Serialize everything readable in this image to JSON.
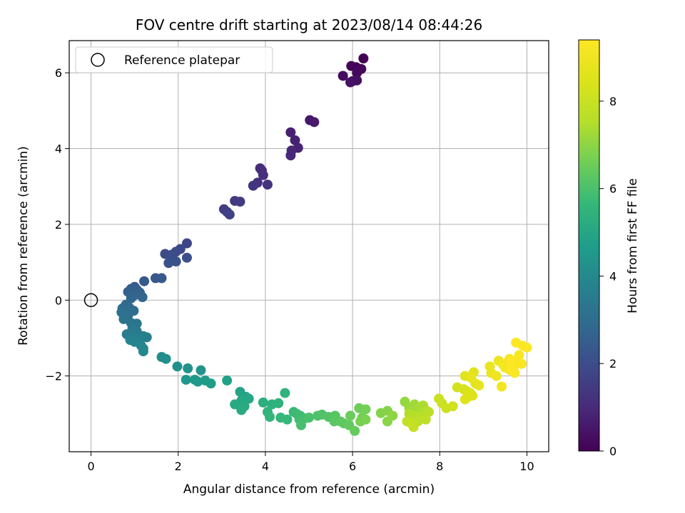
{
  "chart_data": {
    "type": "scatter",
    "title": "FOV centre drift starting at 2023/08/14 08:44:26",
    "xlabel": "Angular distance from reference (arcmin)",
    "ylabel": "Rotation from reference (arcmin)",
    "xlim": [
      -0.5,
      10.5
    ],
    "ylim": [
      -4.0,
      6.85
    ],
    "xticks": [
      0,
      2,
      4,
      6,
      8,
      10
    ],
    "yticks": [
      -2,
      0,
      2,
      4,
      6
    ],
    "grid": true,
    "legend": {
      "position": "top-left",
      "entries": [
        "Reference platepar"
      ]
    },
    "reference_point": {
      "x": 0,
      "y": 0
    },
    "colorbar": {
      "label": "Hours from first FF file",
      "colormap": "viridis",
      "range": [
        0,
        9.4
      ],
      "ticks": [
        0,
        2,
        4,
        6,
        8
      ]
    },
    "points": [
      [
        6.25,
        6.38,
        0.0
      ],
      [
        5.97,
        6.18,
        0.05
      ],
      [
        6.08,
        6.15,
        0.1
      ],
      [
        6.2,
        6.1,
        0.15
      ],
      [
        6.1,
        6.0,
        0.2
      ],
      [
        5.78,
        5.92,
        0.25
      ],
      [
        6.0,
        5.78,
        0.3
      ],
      [
        6.1,
        5.8,
        0.35
      ],
      [
        5.95,
        5.75,
        0.4
      ],
      [
        5.02,
        4.75,
        0.55
      ],
      [
        5.12,
        4.7,
        0.6
      ],
      [
        4.58,
        4.43,
        0.75
      ],
      [
        4.68,
        4.22,
        0.8
      ],
      [
        4.75,
        4.02,
        0.85
      ],
      [
        4.6,
        3.95,
        0.9
      ],
      [
        4.58,
        3.82,
        0.95
      ],
      [
        3.88,
        3.48,
        1.05
      ],
      [
        3.92,
        3.42,
        1.1
      ],
      [
        3.95,
        3.3,
        1.15
      ],
      [
        3.82,
        3.1,
        1.2
      ],
      [
        4.05,
        3.05,
        1.25
      ],
      [
        3.72,
        3.02,
        1.3
      ],
      [
        3.3,
        2.62,
        1.45
      ],
      [
        3.42,
        2.6,
        1.5
      ],
      [
        3.05,
        2.4,
        1.55
      ],
      [
        3.12,
        2.33,
        1.6
      ],
      [
        3.18,
        2.26,
        1.65
      ],
      [
        2.2,
        1.5,
        1.8
      ],
      [
        2.05,
        1.35,
        1.85
      ],
      [
        1.95,
        1.28,
        1.9
      ],
      [
        1.7,
        1.22,
        1.95
      ],
      [
        1.85,
        1.2,
        2.0
      ],
      [
        2.2,
        1.12,
        2.05
      ],
      [
        1.95,
        1.02,
        2.1
      ],
      [
        1.78,
        0.98,
        2.15
      ],
      [
        1.48,
        0.58,
        2.3
      ],
      [
        1.62,
        0.58,
        2.35
      ],
      [
        1.22,
        0.5,
        2.4
      ],
      [
        1.0,
        0.35,
        2.45
      ],
      [
        0.92,
        0.3,
        2.5
      ],
      [
        1.05,
        0.28,
        2.55
      ],
      [
        0.85,
        0.22,
        2.6
      ],
      [
        1.12,
        0.2,
        2.65
      ],
      [
        0.98,
        0.12,
        2.7
      ],
      [
        1.18,
        0.08,
        2.75
      ],
      [
        0.92,
        0.05,
        2.8
      ],
      [
        0.8,
        -0.12,
        2.9
      ],
      [
        0.88,
        -0.2,
        2.95
      ],
      [
        0.72,
        -0.22,
        3.0
      ],
      [
        0.98,
        -0.28,
        3.05
      ],
      [
        0.7,
        -0.32,
        3.1
      ],
      [
        0.85,
        -0.4,
        3.15
      ],
      [
        0.75,
        -0.5,
        3.2
      ],
      [
        0.92,
        -0.6,
        3.25
      ],
      [
        1.05,
        -0.62,
        3.3
      ],
      [
        0.95,
        -0.75,
        3.4
      ],
      [
        1.05,
        -0.82,
        3.45
      ],
      [
        0.82,
        -0.9,
        3.5
      ],
      [
        1.0,
        -0.92,
        3.55
      ],
      [
        1.2,
        -0.95,
        3.6
      ],
      [
        1.28,
        -0.98,
        3.65
      ],
      [
        1.1,
        -1.0,
        3.7
      ],
      [
        0.9,
        -1.05,
        3.75
      ],
      [
        1.0,
        -1.1,
        3.8
      ],
      [
        1.15,
        -1.2,
        3.85
      ],
      [
        1.2,
        -1.28,
        3.9
      ],
      [
        1.2,
        -1.35,
        3.95
      ],
      [
        1.62,
        -1.5,
        4.1
      ],
      [
        1.72,
        -1.55,
        4.15
      ],
      [
        1.98,
        -1.75,
        4.25
      ],
      [
        2.22,
        -1.8,
        4.3
      ],
      [
        2.52,
        -1.85,
        4.35
      ],
      [
        2.18,
        -2.1,
        4.45
      ],
      [
        2.38,
        -2.1,
        4.5
      ],
      [
        2.45,
        -2.15,
        4.55
      ],
      [
        2.62,
        -2.12,
        4.6
      ],
      [
        2.75,
        -2.2,
        4.65
      ],
      [
        3.12,
        -2.12,
        4.8
      ],
      [
        3.42,
        -2.42,
        4.9
      ],
      [
        3.55,
        -2.55,
        4.95
      ],
      [
        3.62,
        -2.6,
        5.0
      ],
      [
        3.45,
        -2.65,
        5.05
      ],
      [
        3.3,
        -2.75,
        5.1
      ],
      [
        3.52,
        -2.8,
        5.15
      ],
      [
        3.45,
        -2.9,
        5.2
      ],
      [
        3.95,
        -2.7,
        5.3
      ],
      [
        4.15,
        -2.75,
        5.35
      ],
      [
        4.3,
        -2.72,
        5.4
      ],
      [
        4.45,
        -2.45,
        5.45
      ],
      [
        4.05,
        -2.95,
        5.5
      ],
      [
        4.1,
        -3.08,
        5.55
      ],
      [
        4.35,
        -3.1,
        5.6
      ],
      [
        4.5,
        -3.15,
        5.65
      ],
      [
        4.65,
        -2.95,
        5.7
      ],
      [
        4.72,
        -3.0,
        5.75
      ],
      [
        4.8,
        -3.05,
        5.8
      ],
      [
        4.78,
        -3.15,
        5.85
      ],
      [
        4.9,
        -3.12,
        5.9
      ],
      [
        4.82,
        -3.3,
        5.95
      ],
      [
        5.0,
        -3.1,
        6.0
      ],
      [
        5.2,
        -3.05,
        6.05
      ],
      [
        5.3,
        -3.02,
        6.1
      ],
      [
        5.45,
        -3.08,
        6.15
      ],
      [
        5.6,
        -3.05,
        6.2
      ],
      [
        5.58,
        -3.2,
        6.25
      ],
      [
        5.72,
        -3.2,
        6.3
      ],
      [
        5.8,
        -3.25,
        6.35
      ],
      [
        5.92,
        -3.3,
        6.4
      ],
      [
        6.05,
        -3.45,
        6.45
      ],
      [
        5.95,
        -3.05,
        6.5
      ],
      [
        6.15,
        -2.85,
        6.55
      ],
      [
        6.22,
        -3.1,
        6.6
      ],
      [
        6.3,
        -2.88,
        6.65
      ],
      [
        6.18,
        -3.2,
        6.7
      ],
      [
        6.3,
        -3.15,
        6.75
      ],
      [
        6.65,
        -2.98,
        6.85
      ],
      [
        6.8,
        -2.92,
        6.9
      ],
      [
        6.8,
        -3.2,
        6.95
      ],
      [
        6.92,
        -3.05,
        7.0
      ],
      [
        7.2,
        -2.68,
        7.1
      ],
      [
        7.3,
        -2.85,
        7.15
      ],
      [
        7.35,
        -2.9,
        7.2
      ],
      [
        7.42,
        -2.75,
        7.25
      ],
      [
        7.48,
        -2.9,
        7.3
      ],
      [
        7.55,
        -2.82,
        7.35
      ],
      [
        7.62,
        -2.78,
        7.4
      ],
      [
        7.7,
        -2.92,
        7.45
      ],
      [
        7.3,
        -3.0,
        7.5
      ],
      [
        7.4,
        -3.05,
        7.55
      ],
      [
        7.58,
        -3.05,
        7.6
      ],
      [
        7.75,
        -2.95,
        7.65
      ],
      [
        7.68,
        -3.15,
        7.7
      ],
      [
        7.5,
        -3.2,
        7.75
      ],
      [
        7.35,
        -3.25,
        7.8
      ],
      [
        7.25,
        -3.2,
        7.85
      ],
      [
        7.4,
        -3.35,
        7.9
      ],
      [
        7.98,
        -2.6,
        8.0
      ],
      [
        8.05,
        -2.72,
        8.05
      ],
      [
        8.15,
        -2.85,
        8.1
      ],
      [
        8.3,
        -2.8,
        8.15
      ],
      [
        8.4,
        -2.3,
        8.25
      ],
      [
        8.55,
        -2.35,
        8.3
      ],
      [
        8.62,
        -2.4,
        8.35
      ],
      [
        8.7,
        -2.45,
        8.4
      ],
      [
        8.75,
        -2.52,
        8.45
      ],
      [
        8.65,
        -2.55,
        8.5
      ],
      [
        8.58,
        -2.62,
        8.55
      ],
      [
        8.58,
        -2.0,
        8.6
      ],
      [
        8.78,
        -1.9,
        8.65
      ],
      [
        8.82,
        -2.2,
        8.7
      ],
      [
        8.9,
        -2.25,
        8.75
      ],
      [
        8.72,
        -2.05,
        8.8
      ],
      [
        9.15,
        -1.75,
        8.85
      ],
      [
        9.18,
        -1.92,
        8.9
      ],
      [
        9.35,
        -1.6,
        8.95
      ],
      [
        9.3,
        -2.0,
        9.0
      ],
      [
        9.42,
        -2.28,
        9.05
      ],
      [
        9.45,
        -1.7,
        9.1
      ],
      [
        9.55,
        -1.65,
        9.12
      ],
      [
        9.6,
        -1.55,
        9.15
      ],
      [
        9.5,
        -1.78,
        9.18
      ],
      [
        9.62,
        -1.85,
        9.2
      ],
      [
        9.7,
        -1.75,
        9.22
      ],
      [
        9.75,
        -1.6,
        9.25
      ],
      [
        9.82,
        -1.45,
        9.28
      ],
      [
        9.88,
        -1.68,
        9.3
      ],
      [
        9.72,
        -1.92,
        9.32
      ],
      [
        9.65,
        -1.82,
        9.33
      ],
      [
        9.9,
        -1.2,
        9.35
      ],
      [
        10.0,
        -1.25,
        9.37
      ],
      [
        9.75,
        -1.12,
        9.38
      ],
      [
        9.62,
        -1.62,
        9.4
      ]
    ]
  }
}
